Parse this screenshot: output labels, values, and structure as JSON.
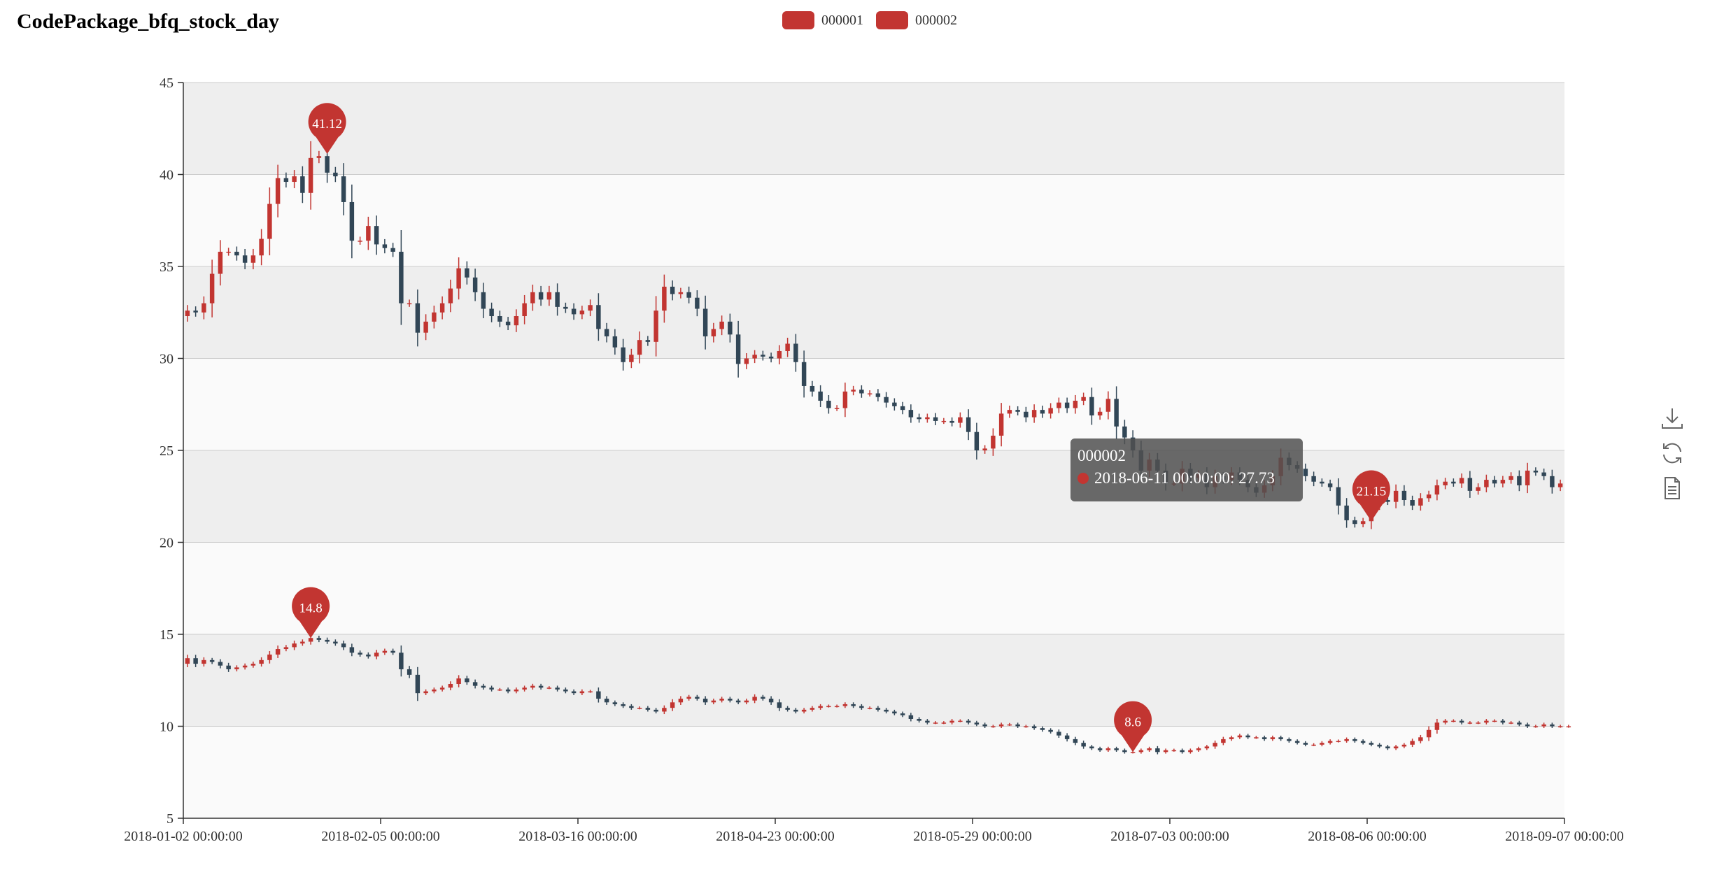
{
  "title": "CodePackage_bfq_stock_day",
  "legend": [
    {
      "name": "000001",
      "color": "#c23531"
    },
    {
      "name": "000002",
      "color": "#c23531"
    }
  ],
  "colors": {
    "up": "#c23531",
    "down": "#314656",
    "band_dark": "#eeeeee",
    "band_light": "#fafafa"
  },
  "tooltip": {
    "series": "000002",
    "text": "2018-06-11 00:00:00: 27.73"
  },
  "toolbox": [
    "download-icon",
    "restore-icon",
    "data-view-icon"
  ],
  "chart_data": {
    "type": "candlestick",
    "title": "CodePackage_bfq_stock_day",
    "ylim": [
      5,
      45
    ],
    "yticks": [
      5,
      10,
      15,
      20,
      25,
      30,
      35,
      40,
      45
    ],
    "xlabels": [
      "2018-01-02 00:00:00",
      "2018-02-05 00:00:00",
      "2018-03-16 00:00:00",
      "2018-04-23 00:00:00",
      "2018-05-29 00:00:00",
      "2018-07-03 00:00:00",
      "2018-08-06 00:00:00",
      "2018-09-07 00:00:00"
    ],
    "series": [
      {
        "name": "000002",
        "close": [
          32.6,
          32.5,
          33.0,
          34.6,
          35.8,
          35.8,
          35.6,
          35.2,
          35.6,
          36.5,
          38.4,
          39.8,
          39.6,
          39.9,
          39.0,
          40.9,
          41.0,
          40.1,
          39.9,
          38.5,
          36.4,
          36.4,
          37.2,
          36.2,
          36.0,
          35.8,
          33.0,
          33.0,
          31.4,
          32.0,
          32.5,
          33.0,
          33.8,
          34.9,
          34.4,
          33.6,
          32.7,
          32.3,
          32.0,
          31.8,
          32.3,
          33.0,
          33.6,
          33.2,
          33.6,
          32.8,
          32.7,
          32.4,
          32.6,
          32.9,
          31.6,
          31.2,
          30.6,
          29.8,
          30.2,
          31.0,
          30.9,
          32.6,
          33.9,
          33.5,
          33.6,
          33.3,
          32.7,
          31.2,
          31.6,
          32.0,
          31.3,
          29.7,
          30.0,
          30.2,
          30.1,
          30.0,
          30.4,
          30.8,
          29.8,
          28.5,
          28.2,
          27.7,
          27.3,
          27.3,
          28.2,
          28.3,
          28.1,
          28.1,
          27.9,
          27.6,
          27.4,
          27.2,
          26.8,
          26.7,
          26.8,
          26.6,
          26.6,
          26.5,
          26.8,
          26.0,
          25.0,
          25.1,
          25.8,
          27.0,
          27.2,
          27.1,
          26.8,
          27.2,
          27.0,
          27.3,
          27.6,
          27.3,
          27.7,
          27.9,
          26.9,
          27.1,
          27.8,
          26.3,
          25.7,
          25.0,
          23.9,
          24.5,
          23.9,
          23.2,
          23.2,
          24.0,
          23.5,
          23.7,
          23.0,
          23.6,
          23.4,
          23.8,
          23.4,
          23.0,
          22.7,
          23.1,
          23.6,
          24.6,
          24.2,
          24.0,
          23.6,
          23.3,
          23.2,
          23.0,
          22.0,
          21.2,
          21.0,
          21.15,
          22.0,
          22.3,
          22.2,
          22.8,
          22.3,
          22.0,
          22.4,
          22.6,
          23.1,
          23.3,
          23.2,
          23.5,
          22.8,
          23.0,
          23.4,
          23.2,
          23.4,
          23.6,
          23.1,
          23.9,
          23.8,
          23.6,
          23.0,
          23.2
        ]
      },
      {
        "name": "000001",
        "close": [
          13.7,
          13.4,
          13.6,
          13.5,
          13.3,
          13.1,
          13.2,
          13.3,
          13.4,
          13.6,
          13.9,
          14.2,
          14.3,
          14.5,
          14.6,
          14.8,
          14.7,
          14.6,
          14.5,
          14.3,
          14.0,
          13.9,
          13.8,
          14.0,
          14.1,
          14.0,
          13.1,
          12.8,
          11.8,
          11.9,
          12.0,
          12.1,
          12.3,
          12.6,
          12.4,
          12.2,
          12.1,
          12.0,
          12.0,
          11.9,
          12.0,
          12.1,
          12.2,
          12.1,
          12.1,
          12.0,
          11.9,
          11.8,
          11.9,
          11.9,
          11.5,
          11.3,
          11.2,
          11.1,
          11.0,
          11.0,
          10.9,
          10.8,
          11.0,
          11.3,
          11.5,
          11.6,
          11.5,
          11.3,
          11.4,
          11.5,
          11.4,
          11.3,
          11.4,
          11.6,
          11.5,
          11.3,
          11.0,
          10.9,
          10.8,
          10.9,
          11.0,
          11.1,
          11.1,
          11.1,
          11.2,
          11.1,
          11.0,
          11.0,
          10.9,
          10.8,
          10.7,
          10.6,
          10.4,
          10.3,
          10.2,
          10.2,
          10.2,
          10.3,
          10.3,
          10.2,
          10.1,
          10.0,
          10.0,
          10.1,
          10.1,
          10.0,
          10.0,
          9.9,
          9.8,
          9.7,
          9.5,
          9.3,
          9.1,
          8.9,
          8.8,
          8.7,
          8.8,
          8.7,
          8.6,
          8.6,
          8.7,
          8.8,
          8.6,
          8.7,
          8.7,
          8.6,
          8.7,
          8.8,
          8.9,
          9.1,
          9.3,
          9.4,
          9.5,
          9.4,
          9.4,
          9.3,
          9.4,
          9.3,
          9.2,
          9.1,
          9.0,
          9.0,
          9.1,
          9.2,
          9.2,
          9.3,
          9.2,
          9.1,
          9.0,
          8.9,
          8.8,
          8.9,
          9.0,
          9.2,
          9.4,
          9.8,
          10.2,
          10.3,
          10.3,
          10.2,
          10.2,
          10.2,
          10.3,
          10.3,
          10.2,
          10.2,
          10.1,
          10.0,
          10.0,
          10.1,
          10.0,
          10.0,
          10.0
        ]
      }
    ],
    "markers": [
      {
        "series": "000002",
        "label": "41.12",
        "index": 17,
        "value": 41.12
      },
      {
        "series": "000002",
        "label": "21.15",
        "index": 144,
        "value": 21.15
      },
      {
        "series": "000001",
        "label": "14.8",
        "index": 15,
        "value": 14.8
      },
      {
        "series": "000001",
        "label": "8.6",
        "index": 115,
        "value": 8.6
      }
    ]
  }
}
